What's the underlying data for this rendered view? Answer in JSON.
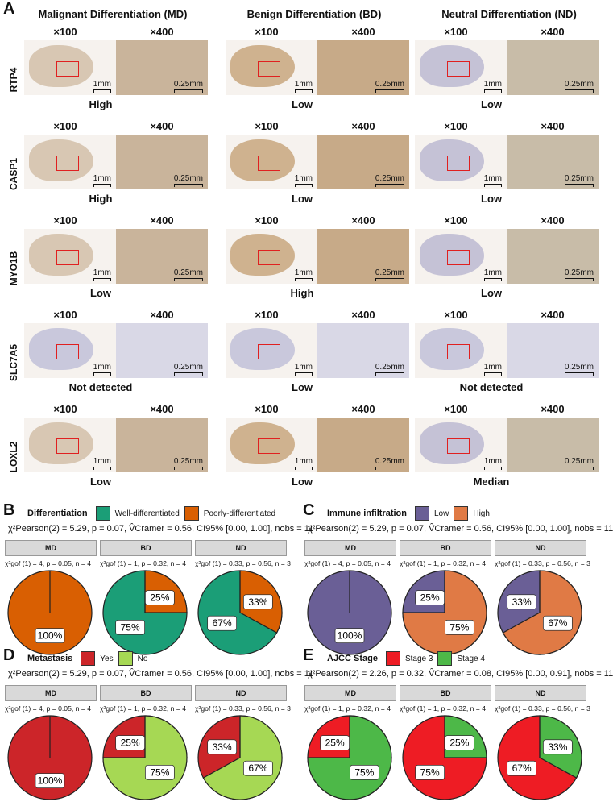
{
  "panelA": {
    "letter": "A",
    "groups": [
      "Malignant Differentiation (MD)",
      "Benign Differentiation   (BD)",
      "Neutral Differentiation (ND)"
    ],
    "mag_low": "×100",
    "mag_high": "×400",
    "scale_low": "1mm",
    "scale_high": "0.25mm",
    "rows": [
      {
        "gene": "RTP4",
        "levels": [
          "High",
          "Low",
          "Low"
        ]
      },
      {
        "gene": "CASP1",
        "levels": [
          "High",
          "Low",
          "Low"
        ]
      },
      {
        "gene": "MYO1B",
        "levels": [
          "Low",
          "High",
          "Low"
        ]
      },
      {
        "gene": "SLC7A5",
        "levels": [
          "Not detected",
          "Low",
          "Not detected"
        ]
      },
      {
        "gene": "LOXL2",
        "levels": [
          "Low",
          "Low",
          "Median"
        ]
      }
    ]
  },
  "panels": [
    {
      "letter": "B",
      "legend_title": "Differentiation",
      "legend": [
        {
          "label": "Well-differentiated",
          "color": "#1b9e77"
        },
        {
          "label": "Poorly-differentiated",
          "color": "#d95f02"
        }
      ],
      "stat": "χ²Pearson(2) = 5.29, p = 0.07, V̂Cramer = 0.56, CI95% [0.00, 1.00], nobs = 11",
      "facets": [
        "MD",
        "BD",
        "ND"
      ],
      "gof": [
        "χ²gof (1) = 4, p = 0.05, n = 4",
        "χ²gof (1) = 1, p = 0.32, n = 4",
        "χ²gof (1) = 0.33, p = 0.56, n = 3"
      ],
      "pies": [
        [
          0,
          100
        ],
        [
          75,
          25
        ],
        [
          67,
          33
        ]
      ],
      "labels": [
        [
          "",
          "100%"
        ],
        [
          "75%",
          "25%"
        ],
        [
          "67%",
          "33%"
        ]
      ]
    },
    {
      "letter": "C",
      "legend_title": "Immune infiltration",
      "legend": [
        {
          "label": "Low",
          "color": "#6a5f96"
        },
        {
          "label": "High",
          "color": "#e07a45"
        }
      ],
      "stat": "χ²Pearson(2) = 5.29, p = 0.07, V̂Cramer = 0.56, CI95% [0.00, 1.00], nobs = 11",
      "facets": [
        "MD",
        "BD",
        "ND"
      ],
      "gof": [
        "χ²gof (1) = 4, p = 0.05, n = 4",
        "χ²gof (1) = 1, p = 0.32, n = 4",
        "χ²gof (1) = 0.33, p = 0.56, n = 3"
      ],
      "pies": [
        [
          100,
          0
        ],
        [
          25,
          75
        ],
        [
          33,
          67
        ]
      ],
      "labels": [
        [
          "100%",
          ""
        ],
        [
          "25%",
          "75%"
        ],
        [
          "33%",
          "67%"
        ]
      ]
    },
    {
      "letter": "D",
      "legend_title": "Metastasis",
      "legend": [
        {
          "label": "Yes",
          "color": "#cc2529"
        },
        {
          "label": "No",
          "color": "#a6d854"
        }
      ],
      "stat": "χ²Pearson(2) = 5.29, p = 0.07, V̂Cramer = 0.56, CI95% [0.00, 1.00], nobs = 11",
      "facets": [
        "MD",
        "BD",
        "ND"
      ],
      "gof": [
        "χ²gof (1) = 4, p = 0.05, n = 4",
        "χ²gof (1) = 1, p = 0.32, n = 4",
        "χ²gof (1) = 0.33, p = 0.56, n = 3"
      ],
      "pies": [
        [
          100,
          0
        ],
        [
          25,
          75
        ],
        [
          33,
          67
        ]
      ],
      "labels": [
        [
          "100%",
          ""
        ],
        [
          "25%",
          "75%"
        ],
        [
          "33%",
          "67%"
        ]
      ]
    },
    {
      "letter": "E",
      "legend_title": "AJCC Stage",
      "legend": [
        {
          "label": "Stage 3",
          "color": "#ee1c24"
        },
        {
          "label": "Stage 4",
          "color": "#4db848"
        }
      ],
      "stat": "χ²Pearson(2) = 2.26, p = 0.32, V̂Cramer = 0.08, CI95% [0.00, 0.91], nobs = 11",
      "facets": [
        "MD",
        "BD",
        "ND"
      ],
      "gof": [
        "χ²gof (1) = 1, p = 0.32, n = 4",
        "χ²gof (1) = 1, p = 0.32, n = 4",
        "χ²gof (1) = 0.33, p = 0.56, n = 3"
      ],
      "pies": [
        [
          25,
          75
        ],
        [
          75,
          25
        ],
        [
          67,
          33
        ]
      ],
      "labels": [
        [
          "25%",
          "75%"
        ],
        [
          "75%",
          "25%"
        ],
        [
          "67%",
          "33%"
        ]
      ]
    }
  ]
}
